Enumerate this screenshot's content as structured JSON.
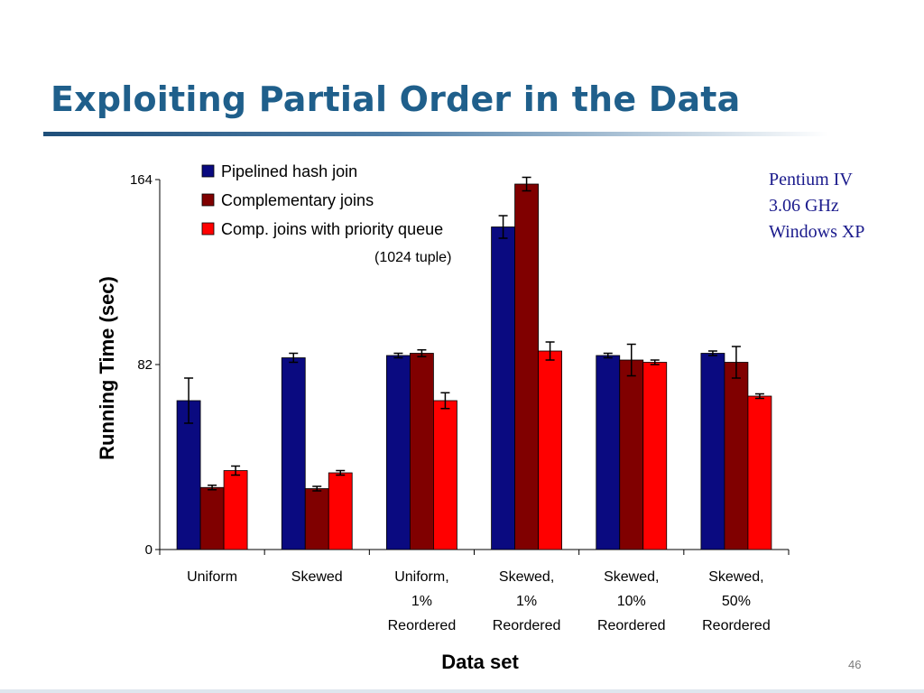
{
  "slide": {
    "title": "Exploiting Partial Order in the Data",
    "platform_lines": [
      "Pentium IV",
      "3.06 GHz",
      "Windows XP"
    ],
    "slide_number": "46"
  },
  "colors": {
    "title": "#1f5f8b",
    "note": "#1a1a8c",
    "series": [
      "#0a0a80",
      "#800000",
      "#ff0000"
    ]
  },
  "chart_data": {
    "type": "bar",
    "title": "",
    "annotation": "(1024 tuple)",
    "xlabel": "Data set",
    "ylabel": "Running Time (sec)",
    "ylim": [
      0,
      164
    ],
    "yticks": [
      0,
      82,
      164
    ],
    "grid": false,
    "legend_position": "top-left",
    "categories": [
      [
        "Uniform"
      ],
      [
        "Skewed"
      ],
      [
        "Uniform,",
        "1%",
        "Reordered"
      ],
      [
        "Skewed,",
        "1%",
        "Reordered"
      ],
      [
        "Skewed,",
        "10%",
        "Reordered"
      ],
      [
        "Skewed,",
        "50%",
        "Reordered"
      ]
    ],
    "series": [
      {
        "name": "Pipelined hash join",
        "values": [
          66,
          85,
          86,
          143,
          86,
          87
        ],
        "errors": [
          10,
          2,
          1,
          5,
          1,
          1
        ]
      },
      {
        "name": "Complementary joins",
        "values": [
          27.5,
          27,
          87,
          162,
          84,
          83
        ],
        "errors": [
          1,
          1,
          1.5,
          3,
          7,
          7
        ]
      },
      {
        "name": "Comp. joins with priority queue",
        "values": [
          35,
          34,
          66,
          88,
          83,
          68
        ],
        "errors": [
          2,
          1,
          3.5,
          4,
          1,
          1
        ]
      }
    ]
  }
}
